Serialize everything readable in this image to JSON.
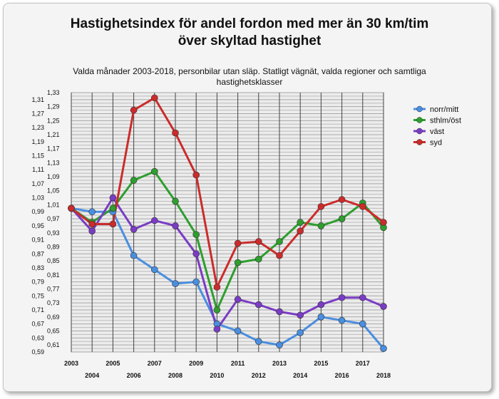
{
  "chart_data": {
    "type": "line",
    "title_line1": "Hastighetsindex för andel fordon med mer än 30 km/tim",
    "title_line2": "över skyltad hastighet",
    "subtitle_line1": "Valda månader 2003-2018, personbilar utan släp. Statligt vägnät, valda regioner och samtliga",
    "subtitle_line2": "hastighetsklasser",
    "xlabel": "",
    "ylabel": "",
    "x": [
      2003,
      2004,
      2005,
      2006,
      2007,
      2008,
      2009,
      2010,
      2011,
      2012,
      2013,
      2014,
      2015,
      2016,
      2017,
      2018
    ],
    "x_tick_labels": [
      "2003",
      "2004",
      "2005",
      "2006",
      "2007",
      "2008",
      "2009",
      "2010",
      "2011",
      "2012",
      "2013",
      "2014",
      "2015",
      "2016",
      "2017",
      "2018"
    ],
    "ylim": [
      0.59,
      1.33
    ],
    "y_ticks_left": [
      "1,31",
      "1,27",
      "1,23",
      "1,19",
      "1,15",
      "1,11",
      "1,07",
      "1,03",
      "0,99",
      "0,95",
      "0,91",
      "0,87",
      "0,83",
      "0,79",
      "0,75",
      "0,71",
      "0,67",
      "0,63",
      "0,59"
    ],
    "y_ticks_right": [
      "1,33",
      "1,29",
      "1,25",
      "1,21",
      "1,17",
      "1,13",
      "1,09",
      "1,05",
      "1,01",
      "0,97",
      "0,93",
      "0,89",
      "0,85",
      "0,81",
      "0,77",
      "0,73",
      "0,69",
      "0,65",
      "0,61"
    ],
    "grid": true,
    "legend_position": "right",
    "series": [
      {
        "name": "norr/mitt",
        "color": "#4a8ee0",
        "values": [
          1.0,
          0.99,
          0.99,
          0.865,
          0.825,
          0.785,
          0.79,
          0.67,
          0.65,
          0.62,
          0.61,
          0.645,
          0.69,
          0.68,
          0.67,
          0.6
        ]
      },
      {
        "name": "sthlm/öst",
        "color": "#2e9e2e",
        "values": [
          1.0,
          0.96,
          1.0,
          1.08,
          1.105,
          1.02,
          0.925,
          0.71,
          0.845,
          0.855,
          0.905,
          0.96,
          0.95,
          0.97,
          1.015,
          0.945
        ]
      },
      {
        "name": "väst",
        "color": "#7a3cc4",
        "values": [
          1.0,
          0.935,
          1.03,
          0.94,
          0.965,
          0.95,
          0.87,
          0.655,
          0.74,
          0.725,
          0.705,
          0.695,
          0.725,
          0.745,
          0.745,
          0.72
        ]
      },
      {
        "name": "syd",
        "color": "#cc2b2b",
        "values": [
          1.0,
          0.955,
          0.955,
          1.28,
          1.315,
          1.215,
          1.095,
          0.775,
          0.9,
          0.905,
          0.865,
          0.935,
          1.005,
          1.025,
          1.005,
          0.96
        ]
      }
    ]
  }
}
